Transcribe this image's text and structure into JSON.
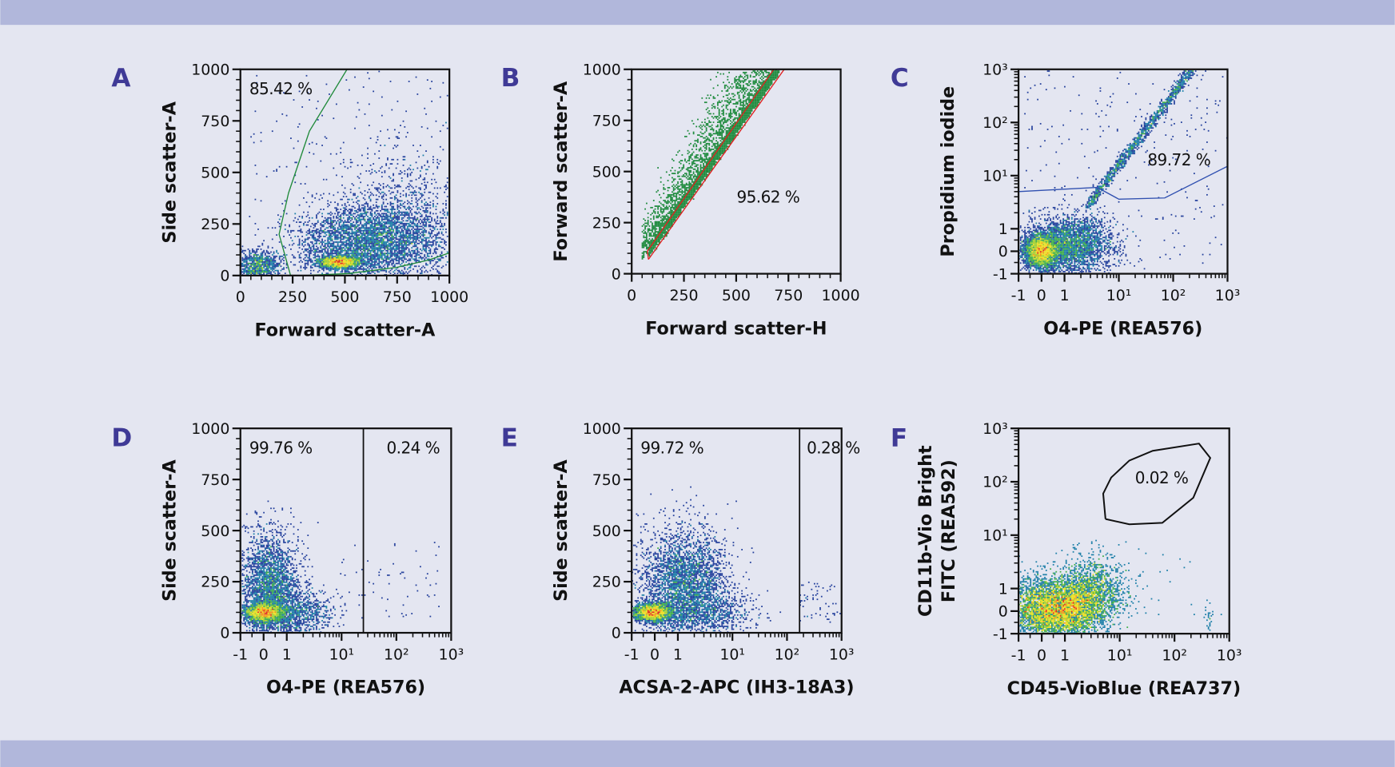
{
  "colors": {
    "background": "#e4e6f1",
    "band": "#b1b7db",
    "panel_letter": "#3f3a96",
    "density_scale": [
      "#24409c",
      "#1d7fa8",
      "#3fae4a",
      "#a6d132",
      "#f0e020",
      "#f29a1c",
      "#e02a1a"
    ]
  },
  "chart_data": [
    {
      "panel": "A",
      "type": "scatter",
      "xlabel": "Forward scatter-A",
      "ylabel": "Side scatter-A",
      "x_scale": "linear",
      "y_scale": "linear",
      "xlim": [
        0,
        1000
      ],
      "ylim": [
        0,
        1000
      ],
      "x_ticks": [
        "0",
        "250",
        "500",
        "750",
        "1000"
      ],
      "y_ticks": [
        "0",
        "250",
        "500",
        "750",
        "1000"
      ],
      "coloring": "density",
      "gates": [
        {
          "shape": "polygon",
          "color": "#1f8a3a",
          "percent": "85.42 %",
          "vertices": [
            [
              240,
              0
            ],
            [
              185,
              200
            ],
            [
              230,
              400
            ],
            [
              330,
              700
            ],
            [
              510,
              1000
            ],
            [
              1000,
              1000
            ],
            [
              1000,
              110
            ],
            [
              900,
              75
            ],
            [
              750,
              40
            ],
            [
              520,
              10
            ],
            [
              300,
              0
            ]
          ]
        }
      ]
    },
    {
      "panel": "B",
      "type": "scatter",
      "xlabel": "Forward scatter-H",
      "ylabel": "Forward scatter-A",
      "x_scale": "linear",
      "y_scale": "linear",
      "xlim": [
        0,
        1000
      ],
      "ylim": [
        0,
        1000
      ],
      "x_ticks": [
        "0",
        "250",
        "500",
        "750",
        "1000"
      ],
      "y_ticks": [
        "0",
        "250",
        "500",
        "750",
        "1000"
      ],
      "coloring": "#1d8a3c",
      "gates": [
        {
          "shape": "polygon",
          "color": "#e02020",
          "percent": "95.62 %",
          "vertices": [
            [
              80,
              70
            ],
            [
              75,
              110
            ],
            [
              680,
              1000
            ],
            [
              730,
              1000
            ],
            [
              80,
              70
            ]
          ]
        }
      ]
    },
    {
      "panel": "C",
      "type": "scatter",
      "xlabel": "O4-PE (REA576)",
      "ylabel": "Propidium iodide",
      "x_scale": "biexponential",
      "y_scale": "biexponential",
      "xlim": [
        -1,
        1000
      ],
      "ylim": [
        -1,
        1000
      ],
      "x_ticks": [
        "-1",
        "0",
        "1",
        "10¹",
        "10²",
        "10³"
      ],
      "y_ticks": [
        "-1",
        "0",
        "1",
        "10¹",
        "10²",
        "10³"
      ],
      "coloring": "density",
      "gates": [
        {
          "shape": "polyline",
          "color": "#3050b0",
          "percent": "89.72 %",
          "vertices": [
            [
              -1,
              5
            ],
            [
              4,
              6
            ],
            [
              10,
              3.6
            ],
            [
              70,
              3.8
            ],
            [
              1000,
              15
            ]
          ]
        }
      ]
    },
    {
      "panel": "D",
      "type": "scatter",
      "xlabel": "O4-PE (REA576)",
      "ylabel": "Side scatter-A",
      "x_scale": "biexponential",
      "y_scale": "linear",
      "xlim": [
        -1,
        1000
      ],
      "ylim": [
        0,
        1000
      ],
      "x_ticks": [
        "-1",
        "0",
        "1",
        "10¹",
        "10²",
        "10³"
      ],
      "y_ticks": [
        "0",
        "250",
        "500",
        "750",
        "1000"
      ],
      "coloring": "density",
      "gates": [
        {
          "shape": "vline",
          "color": "#111111",
          "at": 25,
          "percent_left": "99.76 %",
          "percent_right": "0.24 %"
        }
      ]
    },
    {
      "panel": "E",
      "type": "scatter",
      "xlabel": "ACSA-2-APC (IH3-18A3)",
      "ylabel": "Side scatter-A",
      "x_scale": "biexponential",
      "y_scale": "linear",
      "xlim": [
        -1,
        1000
      ],
      "ylim": [
        0,
        1000
      ],
      "x_ticks": [
        "-1",
        "0",
        "1",
        "10¹",
        "10²",
        "10³"
      ],
      "y_ticks": [
        "0",
        "250",
        "500",
        "750",
        "1000"
      ],
      "coloring": "density",
      "gates": [
        {
          "shape": "vline",
          "color": "#111111",
          "at": 170,
          "percent_left": "99.72 %",
          "percent_right": "0.28 %"
        }
      ]
    },
    {
      "panel": "F",
      "type": "scatter",
      "xlabel": "CD45-VioBlue (REA737)",
      "ylabel": [
        "CD11b-Vio Bright",
        "FITC (REA592)"
      ],
      "x_scale": "biexponential",
      "y_scale": "biexponential",
      "xlim": [
        -1,
        1000
      ],
      "ylim": [
        -1,
        1000
      ],
      "x_ticks": [
        "-1",
        "0",
        "1",
        "10¹",
        "10²",
        "10³"
      ],
      "y_ticks": [
        "-1",
        "0",
        "1",
        "10¹",
        "10²",
        "10³"
      ],
      "coloring": "density",
      "gates": [
        {
          "shape": "polygon",
          "color": "#111111",
          "percent": "0.02 %",
          "vertices": [
            [
              5.5,
              20
            ],
            [
              5,
              60
            ],
            [
              7,
              120
            ],
            [
              15,
              250
            ],
            [
              40,
              380
            ],
            [
              280,
              520
            ],
            [
              450,
              280
            ],
            [
              220,
              50
            ],
            [
              60,
              17
            ],
            [
              15,
              16
            ],
            [
              5.5,
              20
            ]
          ]
        }
      ]
    }
  ]
}
